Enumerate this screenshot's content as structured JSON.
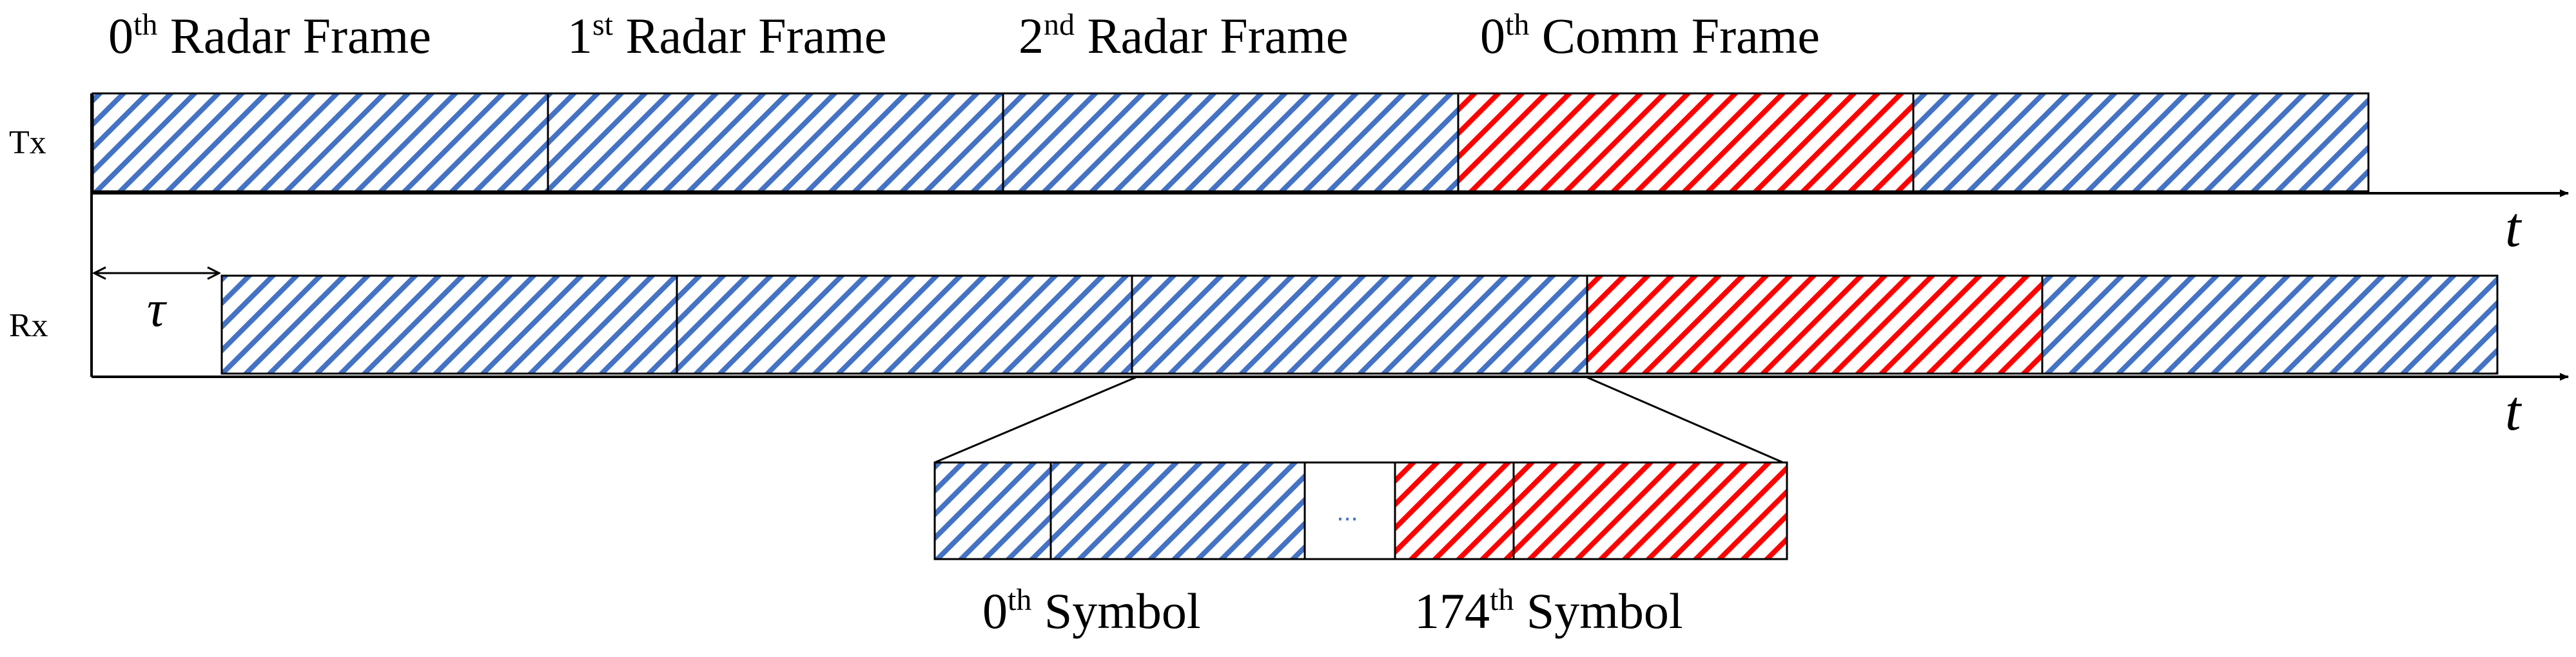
{
  "frame_labels": [
    {
      "base": "0",
      "sup": "th",
      "rest": " Radar Frame"
    },
    {
      "base": "1",
      "sup": "st",
      "rest": " Radar Frame"
    },
    {
      "base": "2",
      "sup": "nd",
      "rest": " Radar Frame"
    },
    {
      "base": "0",
      "sup": "th",
      "rest": " Comm Frame"
    }
  ],
  "tracks": {
    "tx": {
      "label": "Tx",
      "frames": [
        "radar",
        "radar",
        "radar",
        "comm",
        "radar"
      ]
    },
    "rx": {
      "label": "Rx",
      "frames": [
        "radar",
        "radar",
        "radar",
        "comm",
        "radar"
      ]
    }
  },
  "axis_label": "t",
  "delay_label": "τ",
  "zoom": {
    "cells": [
      "radar",
      "radar",
      "gap",
      "comm",
      "comm"
    ],
    "ellipsis": "...",
    "symbol_labels": [
      {
        "base": "0",
        "sup": "th",
        "rest": " Symbol"
      },
      {
        "base": "174",
        "sup": "th",
        "rest": " Symbol"
      }
    ]
  },
  "colors": {
    "radar": "#4472c4",
    "comm": "#ff0000",
    "line": "#000000",
    "background": "#ffffff"
  }
}
